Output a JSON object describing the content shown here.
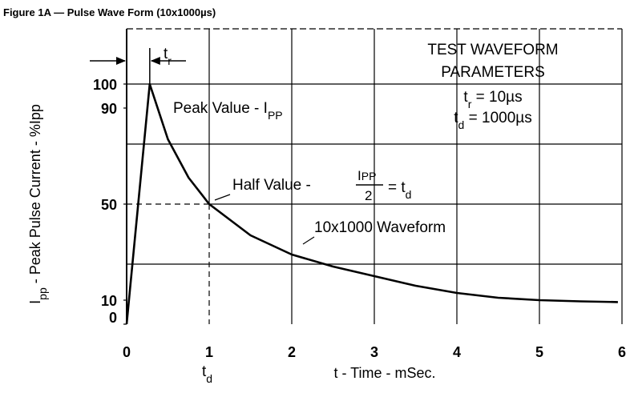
{
  "chart_data": {
    "type": "line",
    "title": "Figure 1A — Pulse Wave Form (10x1000µs)",
    "xlabel": "t - Time - mSec.",
    "ylabel": {
      "main": "I",
      "sub": "pp",
      "rest": " - Peak Pulse Current - %Ipp"
    },
    "x": [
      0,
      0.28,
      0.5,
      0.75,
      1,
      1.5,
      2,
      2.5,
      3,
      3.5,
      4,
      4.5,
      5,
      5.5,
      5.95
    ],
    "values": [
      0,
      100,
      77,
      61,
      50,
      37,
      29,
      24,
      20,
      16,
      13,
      11,
      10,
      9.5,
      9.2
    ],
    "color": "#000000",
    "xlim": [
      0,
      6
    ],
    "xticks": [
      0,
      1,
      2,
      3,
      4,
      5,
      6
    ],
    "ylim": [
      0,
      123
    ],
    "yticks": [
      0,
      10,
      50,
      90,
      100
    ],
    "ygrid": [
      25,
      50,
      75,
      100
    ],
    "half_point": {
      "x": 1,
      "y": 50
    },
    "annotations": {
      "box": [
        "TEST WAVEFORM",
        "PARAMETERS"
      ],
      "tr_param": [
        "t",
        "r",
        " = 10µs"
      ],
      "td_param": [
        "t",
        "d",
        " = 1000µs"
      ],
      "peak": [
        "Peak Value - I",
        "PP"
      ],
      "half": [
        "Half Value - ",
        "I",
        "PP",
        "2",
        " = t",
        "d"
      ],
      "waveform": "10x1000 Waveform",
      "tr_marker": [
        "t",
        "r"
      ],
      "td_marker": [
        "t",
        "d"
      ]
    }
  }
}
